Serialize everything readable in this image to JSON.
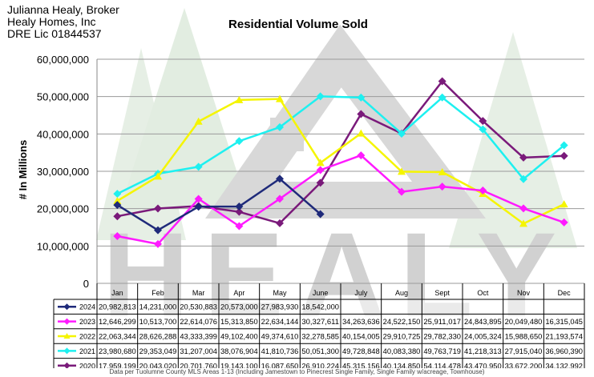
{
  "broker": {
    "line1": "Julianna Healy, Broker",
    "line2": "Healy Homes, Inc",
    "line3": "DRE Lic 01844537"
  },
  "watermark": "HEALY",
  "footnote": "Data per Tuolumne County MLS Areas 1-13 (Including Jamestown to Pinecrest Single Family, Single Family w/acreage, Townhouse)",
  "chart_data": {
    "type": "line",
    "title": "Residential Volume Sold",
    "xlabel": "",
    "ylabel": "# In Millions",
    "ylim": [
      0,
      60000000
    ],
    "ytick_step": 10000000,
    "grid": true,
    "categories": [
      "Jan",
      "Feb",
      "Mar",
      "Apr",
      "May",
      "June",
      "July",
      "Aug",
      "Sept",
      "Oct",
      "Nov",
      "Dec"
    ],
    "series": [
      {
        "name": "2024",
        "color": "#1f2a7a",
        "marker": "diamond",
        "values": [
          20982813,
          14231000,
          20530883,
          20573000,
          27983930,
          18542000,
          null,
          null,
          null,
          null,
          null,
          null
        ],
        "labels": [
          "20,982,813",
          "14,231,000",
          "20,530,883",
          "20,573,000",
          "27,983,930",
          "18,542,000",
          "",
          "",
          "",
          "",
          "",
          ""
        ]
      },
      {
        "name": "2023",
        "color": "#ff1aff",
        "marker": "diamond",
        "values": [
          12646299,
          10513700,
          22614076,
          15313850,
          22634144,
          30327611,
          34263636,
          24522150,
          25911017,
          24843895,
          20049480,
          16315045
        ],
        "labels": [
          "12,646,299",
          "10,513,700",
          "22,614,076",
          "15,313,850",
          "22,634,144",
          "30,327,611",
          "34,263,636",
          "24,522,150",
          "25,911,017",
          "24,843,895",
          "20,049,480",
          "16,315,045"
        ]
      },
      {
        "name": "2022",
        "color": "#f5f500",
        "marker": "triangle",
        "values": [
          22063344,
          28626288,
          43333399,
          49102400,
          49374610,
          32278585,
          40154005,
          29910725,
          29782330,
          24005324,
          15988650,
          21193574
        ],
        "labels": [
          "22,063,344",
          "28,626,288",
          "43,333,399",
          "49,102,400",
          "49,374,610",
          "32,278,585",
          "40,154,005",
          "29,910,725",
          "29,782,330",
          "24,005,324",
          "15,988,650",
          "21,193,574"
        ]
      },
      {
        "name": "2021",
        "color": "#1ef0f0",
        "marker": "diamond",
        "values": [
          23980680,
          29353049,
          31207004,
          38076904,
          41810736,
          50051300,
          49728848,
          40083380,
          49763719,
          41218313,
          27915040,
          36960390
        ],
        "labels": [
          "23,980,680",
          "29,353,049",
          "31,207,004",
          "38,076,904",
          "41,810,736",
          "50,051,300",
          "49,728,848",
          "40,083,380",
          "49,763,719",
          "41,218,313",
          "27,915,040",
          "36,960,390"
        ]
      },
      {
        "name": "2020",
        "color": "#7a1a7a",
        "marker": "diamond",
        "values": [
          17959199,
          20043020,
          20701760,
          19143100,
          16087650,
          26910224,
          45315156,
          40134850,
          54114478,
          43470950,
          33672200,
          34132992
        ],
        "labels": [
          "17,959,199",
          "20,043,020",
          "20,701,760",
          "19,143,100",
          "16,087,650",
          "26,910,224",
          "45,315,156",
          "40,134,850",
          "54,114,478",
          "43,470,950",
          "33,672,200",
          "34,132,992"
        ]
      }
    ]
  }
}
